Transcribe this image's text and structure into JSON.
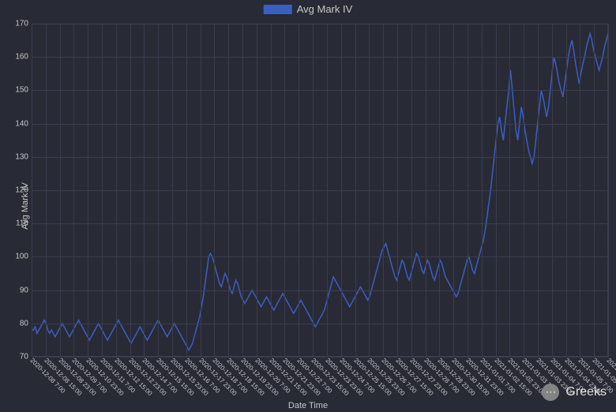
{
  "chart": {
    "type": "line",
    "background_color": "#282a36",
    "grid_color": "#3a3d4d",
    "text_color": "#c8c8c8",
    "legend": {
      "label": "Avg Mark IV",
      "swatch_color": "#3b5fc0",
      "fontsize": 13
    },
    "ylabel": "Avg Mark IV",
    "xlabel": "Date Time",
    "label_fontsize": 11,
    "tick_fontsize": 10,
    "xtick_fontsize": 8,
    "xtick_rotation": 45,
    "ylim": [
      70,
      170
    ],
    "ytick_step": 10,
    "yticks": [
      70,
      80,
      90,
      100,
      110,
      120,
      130,
      140,
      150,
      160,
      170
    ],
    "xticks": [
      "2020-12-08 7:00",
      "2020-12-08 15:00",
      "2020-12-08 23:00",
      "2020-12-09 7:00",
      "2020-12-10 23:00",
      "2020-12-11 7:00",
      "2020-12-12 15:00",
      "2020-12-12 23:00",
      "2020-12-14 7:00",
      "2020-12-15 15:00",
      "2020-12-15 23:00",
      "2020-12-16 7:00",
      "2020-12-17 23:00",
      "2020-12-18 7:00",
      "2020-12-18 15:00",
      "2020-12-19 23:00",
      "2020-12-20 7:00",
      "2020-12-21 15:00",
      "2020-12-21 23:00",
      "2020-12-22 7:00",
      "2020-12-23 15:00",
      "2020-12-23 23:00",
      "2020-12-24 7:00",
      "2020-12-25 15:00",
      "2020-12-25 23:00",
      "2020-12-26 7:00",
      "2020-12-27 15:00",
      "2020-12-27 23:00",
      "2020-12-28 7:00",
      "2020-12-28 23:00",
      "2020-12-30 15:00",
      "2020-12-31 23:00",
      "2021-01-01 7:00",
      "2021-01-02 15:00",
      "2021-01-02 23:00",
      "2021-01-03 7:00",
      "2021-01-03 23:00",
      "2021-01-04 7:00",
      "2021-01-04 23:00",
      "2021-01-05 7:00",
      "2021-01-05 23:00",
      "2021-01-06 15:00"
    ],
    "line_color": "#3b5fc0",
    "line_width": 1.5,
    "series": [
      78,
      78,
      79,
      77,
      78,
      79,
      80,
      81,
      80,
      78,
      77,
      78,
      77,
      76,
      77,
      78,
      79,
      80,
      79,
      78,
      77,
      76,
      77,
      78,
      79,
      80,
      81,
      80,
      79,
      78,
      77,
      76,
      75,
      76,
      77,
      78,
      79,
      80,
      79,
      78,
      77,
      76,
      75,
      76,
      77,
      78,
      79,
      80,
      81,
      80,
      79,
      78,
      77,
      76,
      75,
      74,
      75,
      76,
      77,
      78,
      79,
      78,
      77,
      76,
      75,
      76,
      77,
      78,
      79,
      80,
      81,
      80,
      79,
      78,
      77,
      76,
      77,
      78,
      79,
      80,
      79,
      78,
      77,
      76,
      75,
      74,
      73,
      72,
      73,
      74,
      76,
      78,
      80,
      82,
      85,
      88,
      92,
      96,
      100,
      101,
      100,
      98,
      96,
      94,
      92,
      91,
      93,
      95,
      94,
      92,
      90,
      89,
      91,
      93,
      92,
      90,
      88,
      87,
      86,
      87,
      88,
      89,
      90,
      89,
      88,
      87,
      86,
      85,
      86,
      87,
      88,
      87,
      86,
      85,
      84,
      85,
      86,
      87,
      88,
      89,
      88,
      87,
      86,
      85,
      84,
      83,
      84,
      85,
      86,
      87,
      86,
      85,
      84,
      83,
      82,
      81,
      80,
      79,
      80,
      81,
      82,
      83,
      84,
      86,
      88,
      90,
      92,
      94,
      93,
      92,
      91,
      90,
      89,
      88,
      87,
      86,
      85,
      86,
      87,
      88,
      89,
      90,
      91,
      90,
      89,
      88,
      87,
      88,
      90,
      92,
      94,
      96,
      98,
      100,
      102,
      103,
      104,
      102,
      100,
      98,
      96,
      94,
      93,
      95,
      97,
      99,
      98,
      96,
      94,
      93,
      95,
      97,
      99,
      101,
      100,
      98,
      96,
      95,
      97,
      99,
      98,
      96,
      94,
      93,
      95,
      97,
      99,
      98,
      96,
      94,
      93,
      92,
      91,
      90,
      89,
      88,
      89,
      91,
      93,
      95,
      97,
      99,
      100,
      98,
      96,
      95,
      97,
      99,
      101,
      103,
      105,
      108,
      112,
      116,
      120,
      125,
      130,
      135,
      140,
      142,
      138,
      135,
      140,
      145,
      150,
      156,
      150,
      144,
      138,
      135,
      140,
      145,
      142,
      138,
      135,
      132,
      130,
      128,
      130,
      135,
      140,
      145,
      150,
      148,
      145,
      142,
      145,
      150,
      155,
      160,
      158,
      155,
      152,
      150,
      148,
      152,
      156,
      160,
      163,
      165,
      162,
      158,
      155,
      152,
      155,
      158,
      160,
      163,
      165,
      167,
      165,
      162,
      160,
      158,
      156,
      158,
      160,
      163,
      165,
      167
    ]
  },
  "watermark": {
    "text": "Greeks",
    "icon_glyph": "⋯"
  }
}
